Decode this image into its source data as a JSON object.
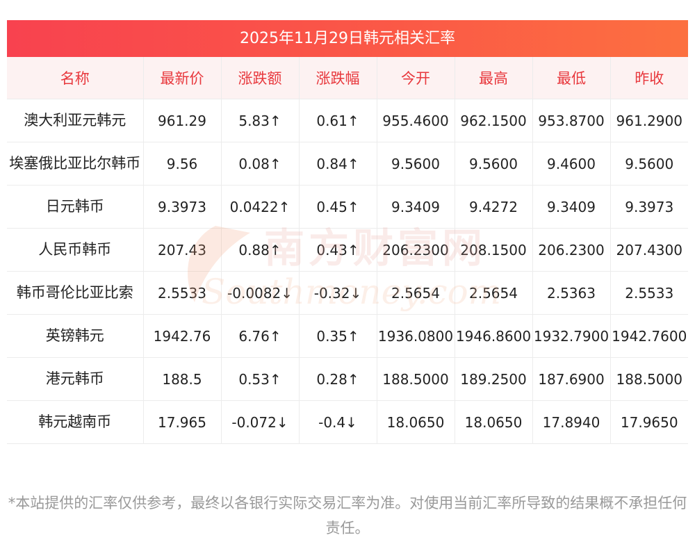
{
  "title": "2025年11月29日韩元相关汇率",
  "headers": [
    "名称",
    "最新价",
    "涨跌额",
    "涨跌幅",
    "今开",
    "最高",
    "最低",
    "昨收"
  ],
  "rows": [
    {
      "name": "澳大利亚元韩元",
      "latest": "961.29",
      "change": "5.83↑",
      "pct": "0.61↑",
      "open": "955.4600",
      "high": "962.1500",
      "low": "953.8700",
      "prev": "961.2900",
      "dir": "up"
    },
    {
      "name": "埃塞俄比亚比尔韩币",
      "latest": "9.56",
      "change": "0.08↑",
      "pct": "0.84↑",
      "open": "9.5600",
      "high": "9.5600",
      "low": "9.4600",
      "prev": "9.5600",
      "dir": "up"
    },
    {
      "name": "日元韩币",
      "latest": "9.3973",
      "change": "0.0422↑",
      "pct": "0.45↑",
      "open": "9.3409",
      "high": "9.4272",
      "low": "9.3409",
      "prev": "9.3973",
      "dir": "up"
    },
    {
      "name": "人民币韩币",
      "latest": "207.43",
      "change": "0.88↑",
      "pct": "0.43↑",
      "open": "206.2300",
      "high": "208.1500",
      "low": "206.2300",
      "prev": "207.4300",
      "dir": "up"
    },
    {
      "name": "韩币哥伦比亚比索",
      "latest": "2.5533",
      "change": "-0.0082↓",
      "pct": "-0.32↓",
      "open": "2.5654",
      "high": "2.5654",
      "low": "2.5363",
      "prev": "2.5533",
      "dir": "down"
    },
    {
      "name": "英镑韩元",
      "latest": "1942.76",
      "change": "6.76↑",
      "pct": "0.35↑",
      "open": "1936.0800",
      "high": "1946.8600",
      "low": "1932.7900",
      "prev": "1942.7600",
      "dir": "up"
    },
    {
      "name": "港元韩币",
      "latest": "188.5",
      "change": "0.53↑",
      "pct": "0.28↑",
      "open": "188.5000",
      "high": "189.2500",
      "low": "187.6900",
      "prev": "188.5000",
      "dir": "up"
    },
    {
      "name": "韩元越南币",
      "latest": "17.965",
      "change": "-0.072↓",
      "pct": "-0.4↓",
      "open": "18.0650",
      "high": "18.0650",
      "low": "17.8940",
      "prev": "17.9650",
      "dir": "down"
    }
  ],
  "watermark": {
    "cn": "南方财富网",
    "en": "Southmoney.com"
  },
  "footnote": "*本站提供的汇率仅供参考，最终以各银行实际交易汇率为准。对使用当前汇率所导致的结果概不承担任何责任。",
  "colors": {
    "accent": "#f8424f",
    "up": "#ee1c25",
    "down": "#138a13",
    "header_bg": "#fdf2f2"
  }
}
